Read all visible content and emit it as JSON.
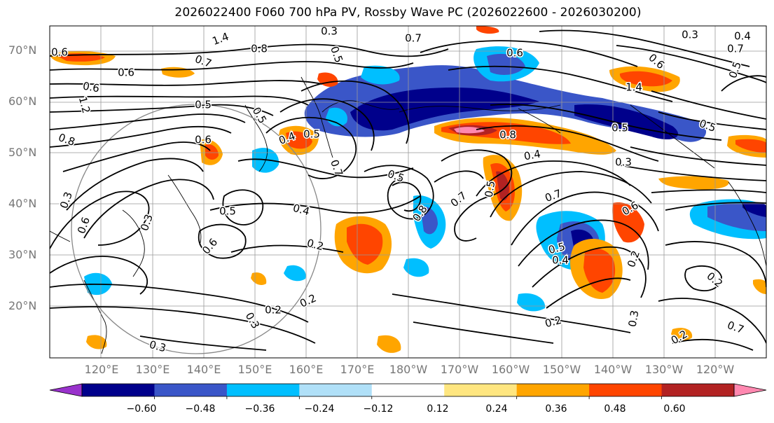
{
  "title": "2026022400 F060 700 hPa PV, Rossby Wave PC (2026022600 - 2026030200)",
  "lat_labels": [
    "70°N",
    "60°N",
    "50°N",
    "40°N",
    "30°N",
    "20°N"
  ],
  "lon_labels": [
    "120°E",
    "130°E",
    "140°E",
    "150°E",
    "160°E",
    "170°E",
    "180°W",
    "170°W",
    "160°W",
    "150°W",
    "140°W",
    "130°W",
    "120°W"
  ],
  "colorbar": {
    "ticks": [
      "−0.60",
      "−0.48",
      "−0.36",
      "−0.24",
      "−0.12",
      "0.12",
      "0.24",
      "0.36",
      "0.48",
      "0.60"
    ],
    "colors": [
      "#9932cc",
      "#00008b",
      "#3a56c8",
      "#00bfff",
      "#b0e0f8",
      "#ffffff",
      "#ffe680",
      "#ffa500",
      "#ff4500",
      "#b22222",
      "#ff88b0"
    ]
  },
  "contour_labels": [
    "1.4",
    "0.6",
    "0.7",
    "0.6",
    "0.8",
    "0.7",
    "0.5",
    "0.3",
    "0.6",
    "0.6",
    "1.2",
    "0.5",
    "0.8",
    "0.5",
    "0.4",
    "0.7",
    "0.5",
    "0.3",
    "0.8",
    "0.6",
    "0.3",
    "0.4",
    "0.5",
    "0.5",
    "0.2",
    "0.6",
    "0.7",
    "0.6",
    "0.5",
    "0.8",
    "0.4",
    "0.7",
    "0.5",
    "0.4",
    "0.2",
    "0.6",
    "0.5",
    "0.3",
    "0.2",
    "0.3",
    "0.2",
    "0.3",
    "0.2",
    "0.2",
    "0.7",
    "0.3",
    "0.2",
    "1.4",
    "0.4",
    "0.6",
    "0.7",
    "0.5",
    "0.5",
    "0.3"
  ]
}
